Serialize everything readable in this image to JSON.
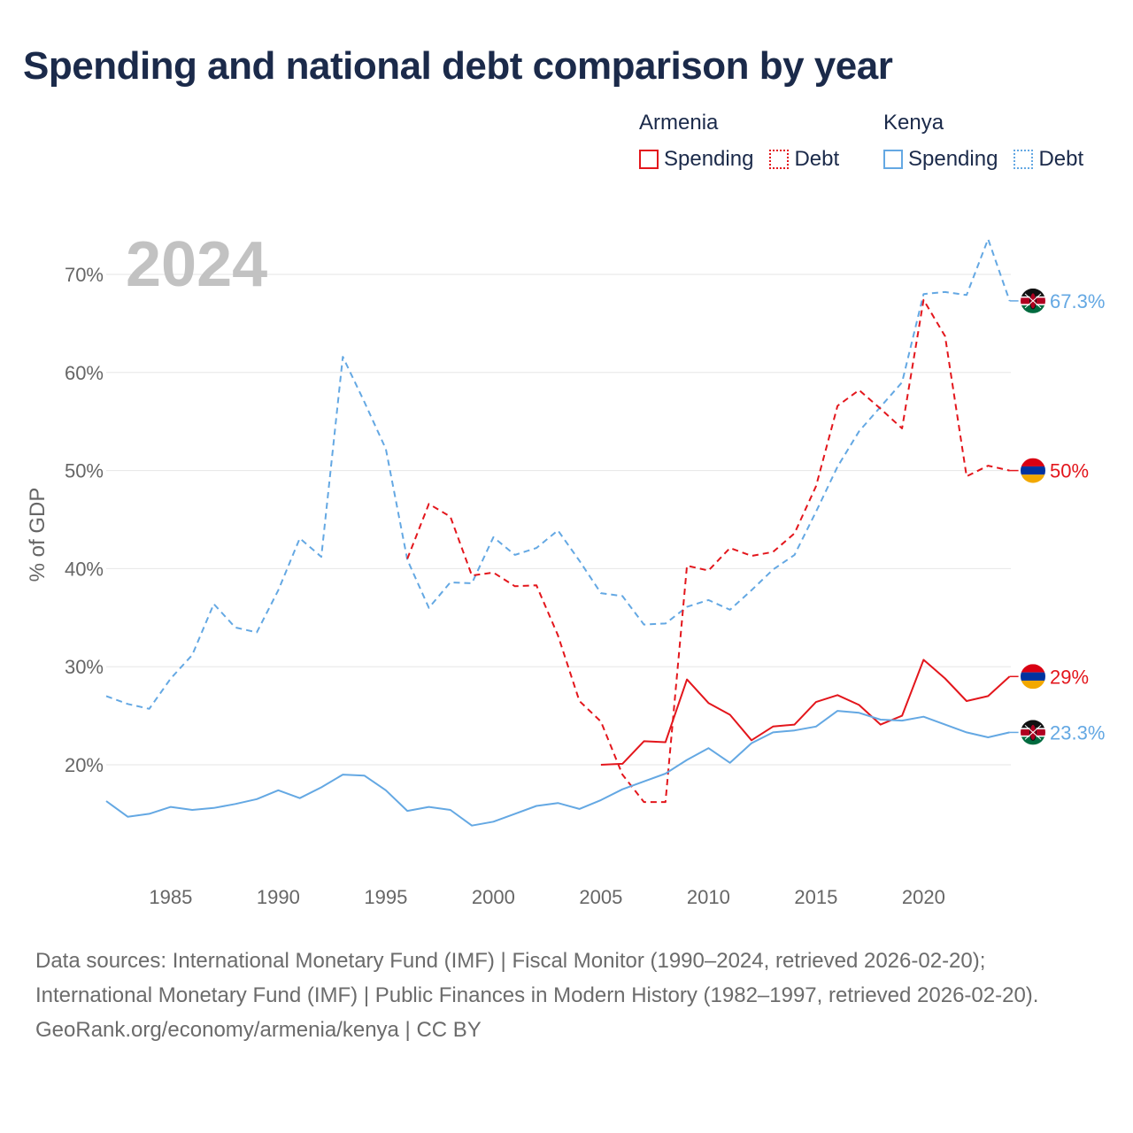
{
  "title": "Spending and national debt comparison by year",
  "legend": {
    "armenia": {
      "country": "Armenia",
      "spending": "Spending",
      "debt": "Debt"
    },
    "kenya": {
      "country": "Kenya",
      "spending": "Spending",
      "debt": "Debt"
    }
  },
  "colors": {
    "armenia": "#e3161c",
    "kenya": "#64a8e3",
    "grid": "#e6e6e6",
    "axis_text": "#666666",
    "year_watermark": "#c2c2c2"
  },
  "footer": {
    "sources": "Data sources: International Monetary Fund (IMF) | Fiscal Monitor (1990–2024, retrieved 2026-02-20); International Monetary Fund (IMF) | Public Finances in Modern History (1982–1997, retrieved 2026-02-20).",
    "credit": "GeoRank.org/economy/armenia/kenya | CC BY"
  },
  "chart_data": {
    "type": "line",
    "title": "Spending and national debt comparison by year",
    "year_label": "2024",
    "xlabel": "",
    "ylabel": "% of GDP",
    "xlim": [
      1982,
      2024
    ],
    "ylim": [
      9,
      76
    ],
    "x_ticks": [
      1985,
      1990,
      1995,
      2000,
      2005,
      2010,
      2015,
      2020
    ],
    "y_ticks": [
      20,
      30,
      40,
      50,
      60,
      70
    ],
    "y_tick_labels": [
      "20%",
      "30%",
      "40%",
      "50%",
      "60%",
      "70%"
    ],
    "grid": true,
    "series": [
      {
        "name": "Kenya Debt",
        "country": "Kenya",
        "metric": "Debt",
        "color": "#64a8e3",
        "dashed": true,
        "x": [
          1982,
          1983,
          1984,
          1985,
          1986,
          1987,
          1988,
          1989,
          1990,
          1991,
          1992,
          1993,
          1994,
          1995,
          1996,
          1997,
          1998,
          1999,
          2000,
          2001,
          2002,
          2003,
          2004,
          2005,
          2006,
          2007,
          2008,
          2009,
          2010,
          2011,
          2012,
          2013,
          2014,
          2015,
          2016,
          2017,
          2018,
          2019,
          2020,
          2021,
          2022,
          2023,
          2024
        ],
        "values": [
          27.0,
          26.2,
          25.7,
          28.8,
          31.2,
          36.4,
          34.0,
          33.5,
          37.8,
          43.1,
          41.2,
          61.6,
          57.0,
          52.2,
          40.9,
          36.0,
          38.6,
          38.5,
          43.2,
          41.4,
          42.1,
          43.9,
          40.8,
          37.5,
          37.2,
          34.3,
          34.4,
          36.1,
          36.8,
          35.8,
          37.8,
          39.9,
          41.4,
          45.8,
          50.4,
          54.0,
          56.5,
          59.0,
          68.0,
          68.2,
          67.9,
          73.6,
          67.3
        ],
        "end_label": "67.3%"
      },
      {
        "name": "Armenia Debt",
        "country": "Armenia",
        "metric": "Debt",
        "color": "#e3161c",
        "dashed": true,
        "x": [
          1996,
          1997,
          1998,
          1999,
          2000,
          2001,
          2002,
          2003,
          2004,
          2005,
          2006,
          2007,
          2008,
          2009,
          2010,
          2011,
          2012,
          2013,
          2014,
          2015,
          2016,
          2017,
          2018,
          2019,
          2020,
          2021,
          2022,
          2023,
          2024
        ],
        "values": [
          41.0,
          46.6,
          45.3,
          39.3,
          39.6,
          38.2,
          38.3,
          33.2,
          26.5,
          24.4,
          19.0,
          16.2,
          16.2,
          40.3,
          39.8,
          42.1,
          41.3,
          41.7,
          43.6,
          48.4,
          56.6,
          58.2,
          56.3,
          54.3,
          67.4,
          63.7,
          49.4,
          50.5,
          50.0
        ],
        "end_label": "50%"
      },
      {
        "name": "Armenia Spending",
        "country": "Armenia",
        "metric": "Spending",
        "color": "#e3161c",
        "dashed": false,
        "x": [
          2005,
          2006,
          2007,
          2008,
          2009,
          2010,
          2011,
          2012,
          2013,
          2014,
          2015,
          2016,
          2017,
          2018,
          2019,
          2020,
          2021,
          2022,
          2023,
          2024
        ],
        "values": [
          20.0,
          20.1,
          22.4,
          22.3,
          28.7,
          26.3,
          25.1,
          22.5,
          23.9,
          24.1,
          26.4,
          27.1,
          26.1,
          24.1,
          25.0,
          30.7,
          28.8,
          26.5,
          27.0,
          29.0
        ],
        "end_label": "29%"
      },
      {
        "name": "Kenya Spending",
        "country": "Kenya",
        "metric": "Spending",
        "color": "#64a8e3",
        "dashed": false,
        "x": [
          1982,
          1983,
          1984,
          1985,
          1986,
          1987,
          1988,
          1989,
          1990,
          1991,
          1992,
          1993,
          1994,
          1995,
          1996,
          1997,
          1998,
          1999,
          2000,
          2001,
          2002,
          2003,
          2004,
          2005,
          2006,
          2007,
          2008,
          2009,
          2010,
          2011,
          2012,
          2013,
          2014,
          2015,
          2016,
          2017,
          2018,
          2019,
          2020,
          2021,
          2022,
          2023,
          2024
        ],
        "values": [
          16.3,
          14.7,
          15.0,
          15.7,
          15.4,
          15.6,
          16.0,
          16.5,
          17.4,
          16.6,
          17.7,
          19.0,
          18.9,
          17.4,
          15.3,
          15.7,
          15.4,
          13.8,
          14.2,
          15.0,
          15.8,
          16.1,
          15.5,
          16.4,
          17.5,
          18.3,
          19.1,
          20.5,
          21.7,
          20.2,
          22.2,
          23.3,
          23.5,
          23.9,
          25.5,
          25.3,
          24.6,
          24.5,
          24.9,
          24.1,
          23.3,
          22.8,
          23.3
        ],
        "end_label": "23.3%"
      }
    ]
  }
}
